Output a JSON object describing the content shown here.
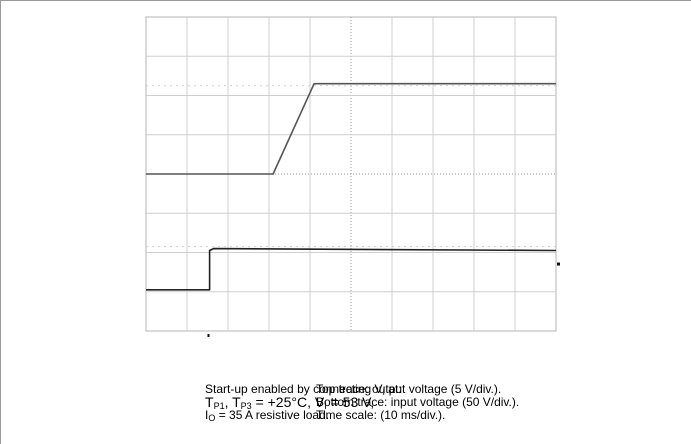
{
  "chart_data": {
    "type": "line",
    "title": "",
    "xlabel": "",
    "ylabel": "",
    "grid": true,
    "legend": "none",
    "divisions": {
      "x": 10,
      "y": 8
    },
    "x_unit": "div",
    "y_unit": "div",
    "xlim": [
      0,
      10
    ],
    "ylim": [
      0,
      8
    ],
    "series": [
      {
        "x": [
          0,
          3.1,
          4.1,
          10
        ],
        "y": [
          4.0,
          4.0,
          6.3,
          6.3
        ],
        "color": "#555555"
      },
      {
        "x": [
          0,
          1.55,
          1.55,
          1.65,
          10
        ],
        "y": [
          1.05,
          1.05,
          2.05,
          2.1,
          2.05
        ],
        "color": "#222222"
      }
    ]
  },
  "caption_left": {
    "line1_text": "Start-up enabled by connecting V",
    "line1_sub": "I",
    "line1_end": " at:",
    "line2_t": "T",
    "line2_sub1": "P1",
    "line2_sep": ", T",
    "line2_sub2": "P3",
    "line2_mid": " = +25°C, V",
    "line2_sub3": "I",
    "line2_end": " = 53 V,",
    "line3_i": "I",
    "line3_sub": "O",
    "line3_end": " = 35 A resistive load."
  },
  "caption_right": {
    "line1": "Top trace: output voltage (5 V/div.).",
    "line2": "Bottom trace: input voltage (50 V/div.).",
    "line3": "Time scale: (10 ms/div.)."
  },
  "colors": {
    "grid": "#cfcfcf",
    "center_axis": "#9a9a9a",
    "border": "#b5b5b5"
  }
}
